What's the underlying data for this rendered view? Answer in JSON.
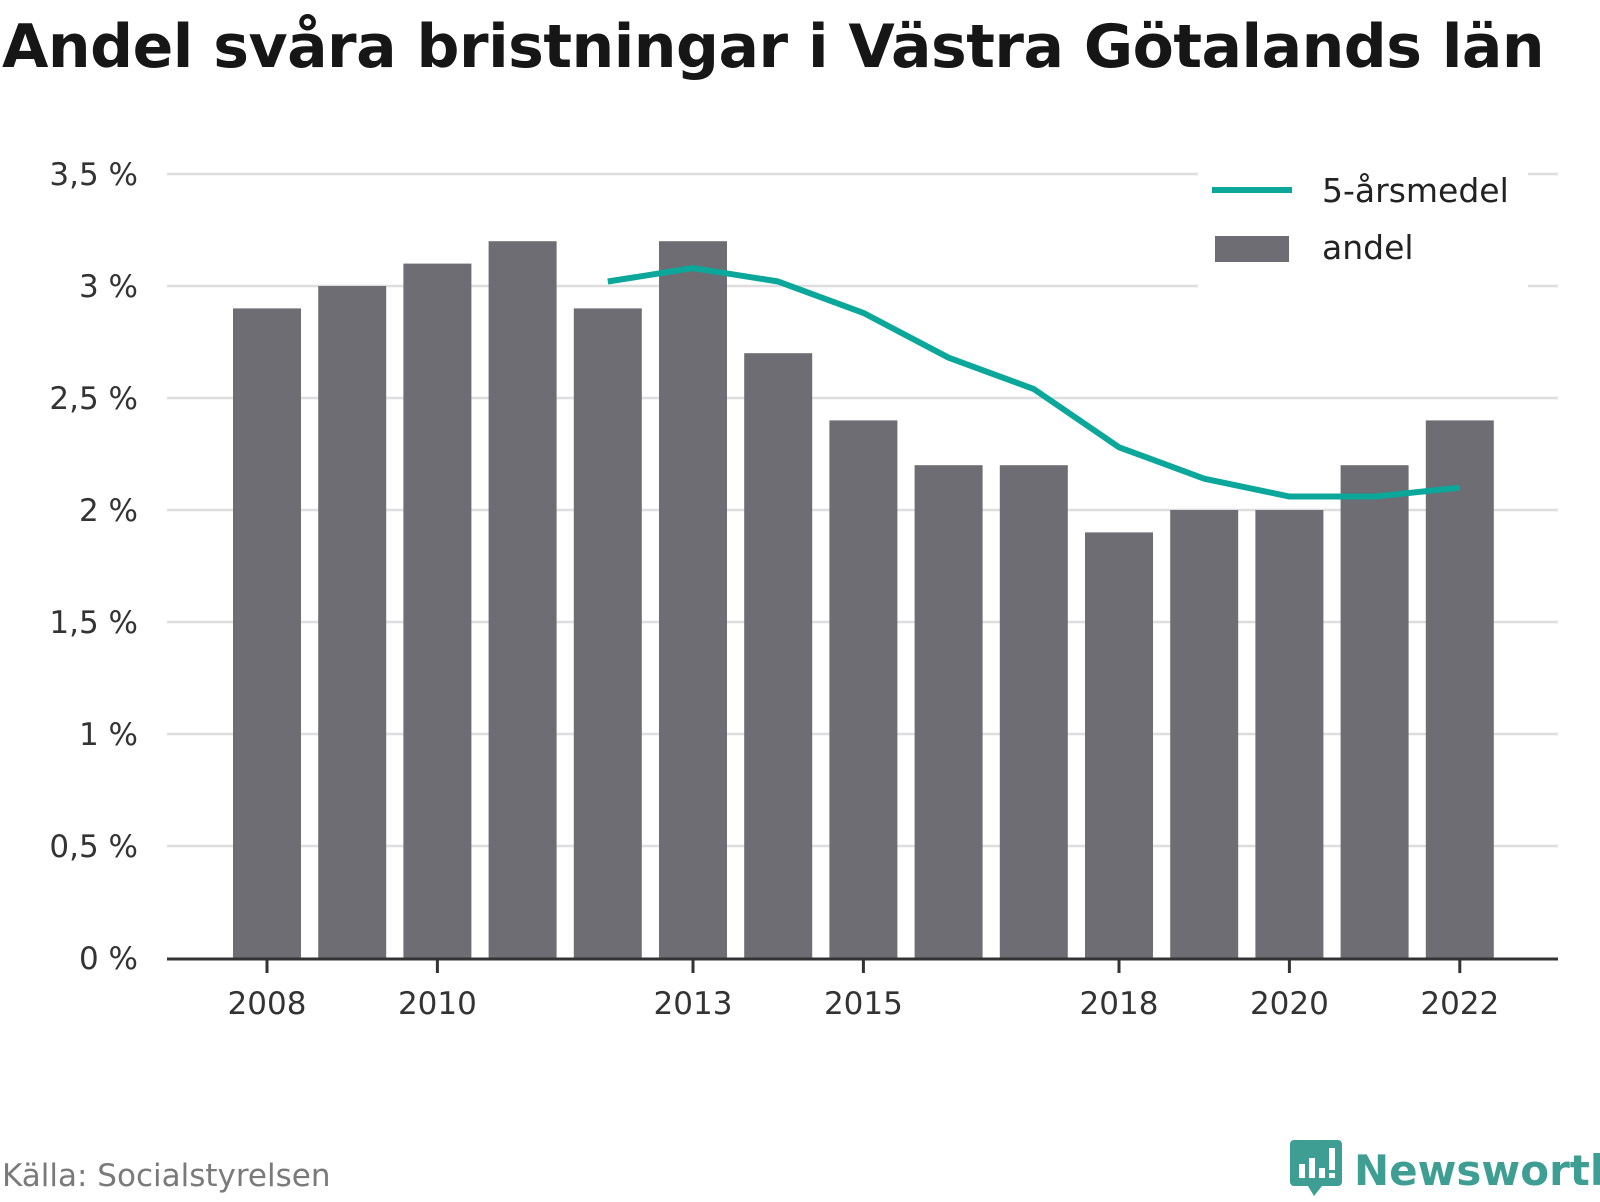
{
  "title": "Andel svåra bristningar i Västra Götalands län",
  "source": "Källa: Socialstyrelsen",
  "brand": {
    "name": "Newsworthy",
    "icon": "newsworthy-logo-icon"
  },
  "colors": {
    "bar": "#6e6d73",
    "line": "#0aa79a",
    "grid": "#dedede",
    "axis": "#333333",
    "brand": "#3f9e93"
  },
  "chart_data": {
    "type": "bar",
    "x": [
      2008,
      2009,
      2010,
      2011,
      2012,
      2013,
      2014,
      2015,
      2016,
      2017,
      2018,
      2019,
      2020,
      2021,
      2022
    ],
    "xticks": [
      "2008",
      "2010",
      "2013",
      "2015",
      "2018",
      "2020",
      "2022"
    ],
    "yticks": [
      "0 %",
      "0,5 %",
      "1 %",
      "1,5 %",
      "2 %",
      "2,5 %",
      "3 %",
      "3,5 %"
    ],
    "ylim": [
      0,
      3.5
    ],
    "grid": true,
    "legend_position": "top-right",
    "series": [
      {
        "name": "andel",
        "type": "bar",
        "values": [
          2.9,
          3.0,
          3.1,
          3.2,
          2.9,
          3.2,
          2.7,
          2.4,
          2.2,
          2.2,
          1.9,
          2.0,
          2.0,
          2.2,
          2.4
        ]
      },
      {
        "name": "5-årsmedel",
        "type": "line",
        "values": [
          null,
          null,
          null,
          null,
          3.02,
          3.08,
          3.02,
          2.88,
          2.68,
          2.54,
          2.28,
          2.14,
          2.06,
          2.06,
          2.1
        ]
      }
    ]
  }
}
